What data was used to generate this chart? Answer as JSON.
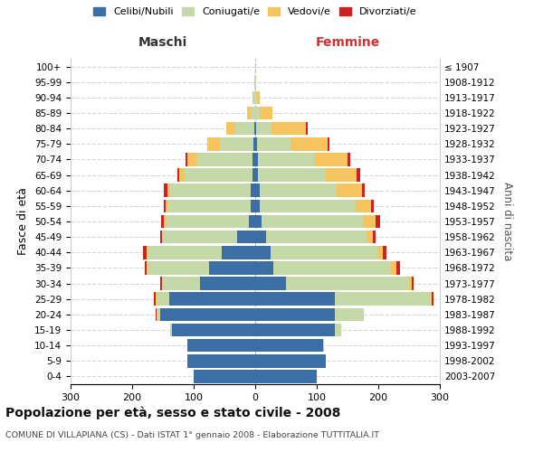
{
  "age_groups": [
    "0-4",
    "5-9",
    "10-14",
    "15-19",
    "20-24",
    "25-29",
    "30-34",
    "35-39",
    "40-44",
    "45-49",
    "50-54",
    "55-59",
    "60-64",
    "65-69",
    "70-74",
    "75-79",
    "80-84",
    "85-89",
    "90-94",
    "95-99",
    "100+"
  ],
  "birth_years": [
    "2003-2007",
    "1998-2002",
    "1993-1997",
    "1988-1992",
    "1983-1987",
    "1978-1982",
    "1973-1977",
    "1968-1972",
    "1963-1967",
    "1958-1962",
    "1953-1957",
    "1948-1952",
    "1943-1947",
    "1938-1942",
    "1933-1937",
    "1928-1932",
    "1923-1927",
    "1918-1922",
    "1913-1917",
    "1908-1912",
    "≤ 1907"
  ],
  "male": {
    "celibi": [
      100,
      110,
      110,
      135,
      155,
      140,
      90,
      75,
      55,
      30,
      10,
      8,
      8,
      5,
      5,
      3,
      2,
      0,
      0,
      0,
      0
    ],
    "coniugati": [
      0,
      0,
      0,
      3,
      5,
      20,
      60,
      100,
      120,
      120,
      135,
      135,
      130,
      110,
      90,
      55,
      30,
      8,
      3,
      1,
      0
    ],
    "vedovi": [
      0,
      0,
      0,
      0,
      1,
      2,
      2,
      2,
      2,
      2,
      3,
      3,
      5,
      8,
      15,
      20,
      15,
      5,
      1,
      0,
      0
    ],
    "divorziati": [
      0,
      0,
      0,
      0,
      1,
      2,
      2,
      3,
      5,
      3,
      5,
      3,
      5,
      3,
      3,
      0,
      0,
      0,
      0,
      0,
      0
    ]
  },
  "female": {
    "nubili": [
      100,
      115,
      110,
      130,
      130,
      130,
      50,
      30,
      25,
      18,
      10,
      8,
      8,
      5,
      5,
      3,
      2,
      0,
      0,
      0,
      0
    ],
    "coniugate": [
      0,
      0,
      2,
      10,
      45,
      155,
      200,
      190,
      175,
      165,
      165,
      155,
      125,
      110,
      90,
      55,
      25,
      8,
      3,
      1,
      0
    ],
    "vedove": [
      0,
      0,
      0,
      0,
      1,
      2,
      5,
      10,
      8,
      8,
      20,
      25,
      40,
      50,
      55,
      60,
      55,
      20,
      5,
      1,
      0
    ],
    "divorziate": [
      0,
      0,
      0,
      0,
      1,
      2,
      3,
      5,
      5,
      5,
      8,
      5,
      5,
      5,
      5,
      3,
      3,
      0,
      0,
      0,
      0
    ]
  },
  "colors": {
    "celibi_nubili": "#3A6EA5",
    "coniugati": "#C5D9A8",
    "vedovi": "#F5C45E",
    "divorziati": "#CC2222"
  },
  "xlim": 300,
  "title": "Popolazione per età, sesso e stato civile - 2008",
  "subtitle": "COMUNE DI VILLAPIANA (CS) - Dati ISTAT 1° gennaio 2008 - Elaborazione TUTTITALIA.IT",
  "ylabel": "Fasce di età",
  "right_ylabel": "Anni di nascita",
  "legend_labels": [
    "Celibi/Nubili",
    "Coniugati/e",
    "Vedovi/e",
    "Divorziati/e"
  ],
  "maschi_label": "Maschi",
  "femmine_label": "Femmine"
}
